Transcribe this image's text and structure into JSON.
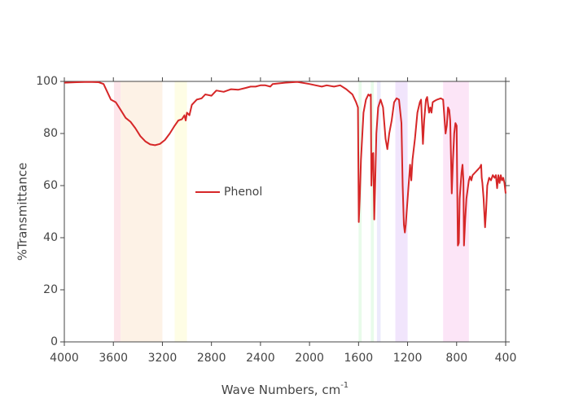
{
  "chart_data": {
    "type": "line",
    "xlabel": "Wave Numbers, cm",
    "xlabel_sup": "-1",
    "ylabel": "%Transmittance",
    "xlim": [
      4000,
      400
    ],
    "ylim": [
      0,
      100
    ],
    "xticks": [
      4000,
      3600,
      3200,
      2800,
      2400,
      2000,
      1600,
      1200,
      800,
      400
    ],
    "yticks": [
      0,
      20,
      40,
      60,
      80,
      100
    ],
    "legend": "inside-left",
    "bands": [
      {
        "from": 3595,
        "to": 3540,
        "color": "#fde0e6"
      },
      {
        "from": 3540,
        "to": 3200,
        "color": "#fdf0e2"
      },
      {
        "from": 3100,
        "to": 3000,
        "color": "#fefde0"
      },
      {
        "from": 1600,
        "to": 1575,
        "color": "#e4fae6"
      },
      {
        "from": 1500,
        "to": 1475,
        "color": "#e4fae6"
      },
      {
        "from": 1450,
        "to": 1420,
        "color": "#e9e6fb"
      },
      {
        "from": 1300,
        "to": 1200,
        "color": "#eee0fb"
      },
      {
        "from": 910,
        "to": 700,
        "color": "#fbe0f6"
      }
    ],
    "x": [
      4000,
      3900,
      3800,
      3720,
      3680,
      3650,
      3620,
      3580,
      3540,
      3500,
      3460,
      3420,
      3380,
      3340,
      3300,
      3260,
      3220,
      3180,
      3140,
      3100,
      3070,
      3040,
      3020,
      3010,
      3000,
      2980,
      2960,
      2920,
      2880,
      2850,
      2800,
      2760,
      2700,
      2640,
      2580,
      2520,
      2480,
      2440,
      2400,
      2360,
      2320,
      2300,
      2200,
      2100,
      2000,
      1950,
      1900,
      1860,
      1800,
      1750,
      1700,
      1650,
      1620,
      1605,
      1598,
      1590,
      1580,
      1560,
      1540,
      1520,
      1510,
      1500,
      1495,
      1488,
      1480,
      1472,
      1465,
      1455,
      1440,
      1420,
      1400,
      1380,
      1365,
      1350,
      1330,
      1310,
      1290,
      1270,
      1250,
      1240,
      1230,
      1222,
      1215,
      1200,
      1180,
      1170,
      1160,
      1140,
      1120,
      1100,
      1090,
      1075,
      1065,
      1050,
      1040,
      1025,
      1015,
      1005,
      995,
      980,
      960,
      930,
      910,
      890,
      880,
      870,
      860,
      852,
      840,
      830,
      820,
      810,
      800,
      795,
      790,
      782,
      775,
      760,
      752,
      745,
      740,
      730,
      720,
      700,
      690,
      680,
      670,
      650,
      630,
      610,
      600,
      595,
      590,
      580,
      568,
      560,
      550,
      535,
      520,
      505,
      490,
      480,
      470,
      460,
      450,
      440,
      430,
      420,
      410,
      400
    ],
    "series": [
      {
        "name": "Phenol",
        "color": "#d62728",
        "values": [
          99.5,
          99.7,
          99.8,
          99.7,
          99,
          96,
          93,
          92,
          89,
          86,
          84.5,
          82,
          79,
          77,
          75.8,
          75.5,
          76,
          77.5,
          80,
          83,
          85,
          85.5,
          87,
          85,
          88,
          87,
          91,
          93,
          93.5,
          95,
          94.5,
          96.5,
          96,
          97,
          96.8,
          97.5,
          98,
          98,
          98.5,
          98.5,
          98,
          99,
          99.5,
          99.8,
          99,
          98.5,
          98,
          98.5,
          98,
          98.5,
          97,
          95,
          92,
          90,
          46,
          55,
          70,
          88,
          93,
          95,
          94.5,
          95,
          60,
          72,
          72.5,
          47,
          60,
          80,
          90,
          93,
          90,
          78,
          74,
          80,
          85,
          92,
          93.5,
          93,
          84,
          60,
          45,
          42,
          45,
          55,
          68,
          62,
          70,
          78,
          88,
          92,
          93,
          76,
          85,
          93,
          94,
          88,
          90,
          88,
          92,
          92.5,
          93,
          93.5,
          93,
          80,
          83,
          90,
          89,
          85,
          57,
          70,
          80,
          84,
          83,
          60,
          37,
          38,
          55,
          65,
          68,
          62,
          37,
          47,
          55,
          62,
          63.5,
          62,
          64,
          65,
          66,
          67,
          68,
          63,
          61,
          55,
          44,
          50,
          60,
          63,
          62,
          64,
          63,
          64,
          59,
          64,
          61,
          64,
          62,
          63,
          61,
          57
        ]
      }
    ]
  }
}
